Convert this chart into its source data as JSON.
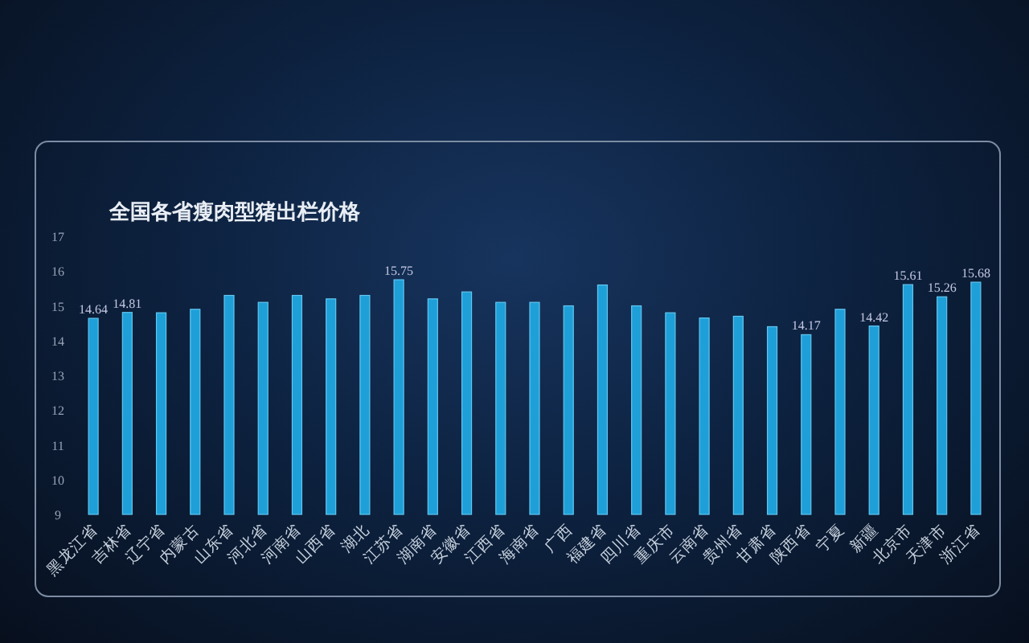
{
  "chart_data": {
    "type": "bar",
    "title": "全国各省瘦肉型猪出栏价格",
    "categories": [
      "黑龙江省",
      "吉林省",
      "辽宁省",
      "内蒙古",
      "山东省",
      "河北省",
      "河南省",
      "山西省",
      "湖北",
      "江苏省",
      "湖南省",
      "安徽省",
      "江西省",
      "海南省",
      "广西",
      "福建省",
      "四川省",
      "重庆市",
      "云南省",
      "贵州省",
      "甘肃省",
      "陕西省",
      "宁夏",
      "新疆",
      "北京市",
      "天津市",
      "浙江省"
    ],
    "values": [
      14.64,
      14.81,
      14.8,
      14.9,
      15.3,
      15.1,
      15.3,
      15.2,
      15.3,
      15.75,
      15.2,
      15.4,
      15.1,
      15.1,
      15.0,
      15.6,
      15.0,
      14.8,
      14.65,
      14.7,
      14.4,
      14.17,
      14.9,
      14.42,
      15.61,
      15.26,
      15.68
    ],
    "value_labels": [
      "14.64",
      "14.81",
      null,
      null,
      null,
      null,
      null,
      null,
      null,
      "15.75",
      null,
      null,
      null,
      null,
      null,
      null,
      null,
      null,
      null,
      null,
      null,
      "14.17",
      null,
      "14.42",
      "15.61",
      "15.26",
      "15.68"
    ],
    "color": "#1e9fd8",
    "ylim": [
      9,
      17
    ],
    "yticks": [
      9,
      10,
      11,
      12,
      13,
      14,
      15,
      16,
      17
    ]
  }
}
